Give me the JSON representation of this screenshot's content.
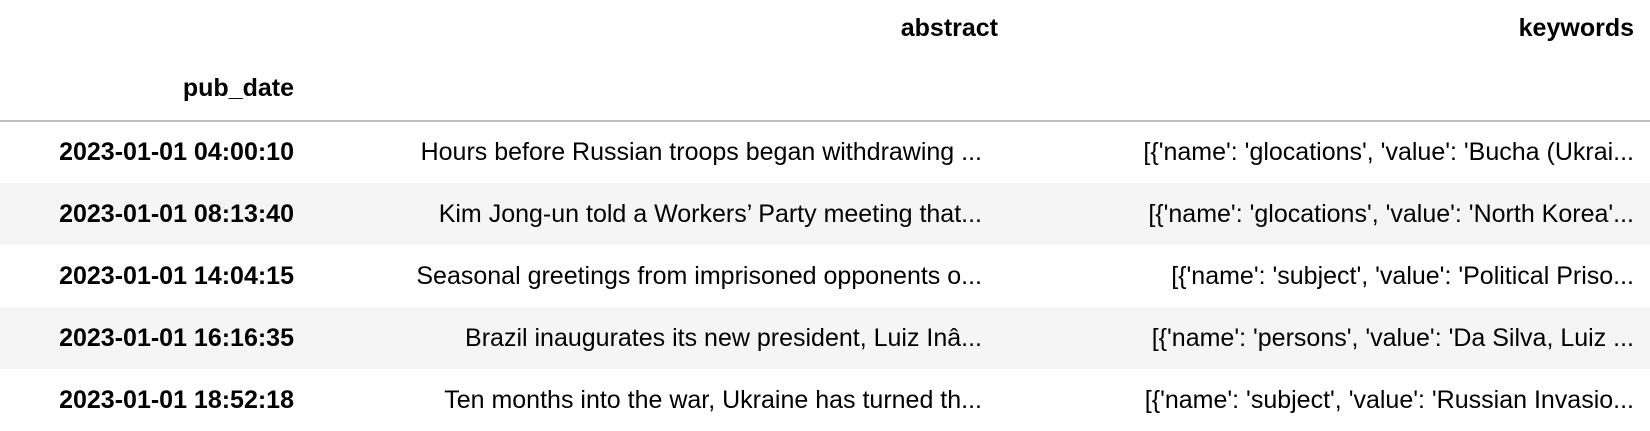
{
  "table": {
    "index_name": "pub_date",
    "columns": [
      "abstract",
      "keywords"
    ],
    "rows": [
      {
        "pub_date": "2023-01-01 04:00:10",
        "abstract": "Hours before Russian troops began withdrawing ...",
        "keywords": "[{'name': 'glocations', 'value': 'Bucha (Ukrai..."
      },
      {
        "pub_date": "2023-01-01 08:13:40",
        "abstract": "Kim Jong-un told a Workers’ Party meeting that...",
        "keywords": "[{'name': 'glocations', 'value': 'North Korea'..."
      },
      {
        "pub_date": "2023-01-01 14:04:15",
        "abstract": "Seasonal greetings from imprisoned opponents o...",
        "keywords": "[{'name': 'subject', 'value': 'Political Priso..."
      },
      {
        "pub_date": "2023-01-01 16:16:35",
        "abstract": "Brazil inaugurates its new president, Luiz Inâ...",
        "keywords": "[{'name': 'persons', 'value': 'Da Silva, Luiz ..."
      },
      {
        "pub_date": "2023-01-01 18:52:18",
        "abstract": "Ten months into the war, Ukraine has turned th...",
        "keywords": "[{'name': 'subject', 'value': 'Russian Invasio..."
      }
    ]
  }
}
